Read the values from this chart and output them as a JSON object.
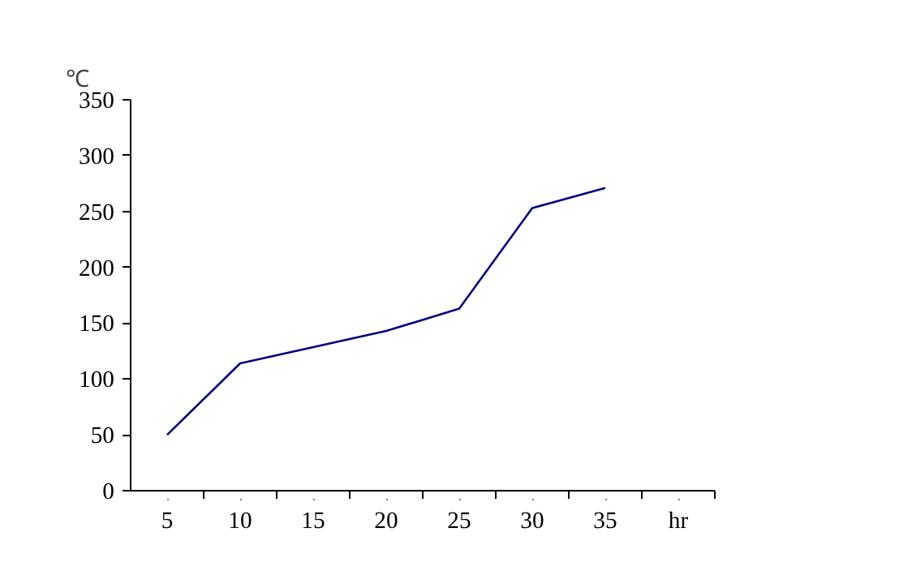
{
  "chart_data": {
    "type": "line",
    "x": [
      5,
      10,
      20,
      25,
      30,
      35
    ],
    "values": [
      50,
      114,
      143,
      163,
      253,
      271
    ],
    "color": "#000080",
    "xlabel": "hr",
    "ylabel": "℃",
    "xlim": [
      2.5,
      42.5
    ],
    "xticks": [
      5,
      10,
      15,
      20,
      25,
      30,
      35
    ],
    "ylim": [
      0,
      350
    ],
    "yticks": [
      0,
      50,
      100,
      150,
      200,
      250,
      300,
      350
    ],
    "grid": false
  }
}
